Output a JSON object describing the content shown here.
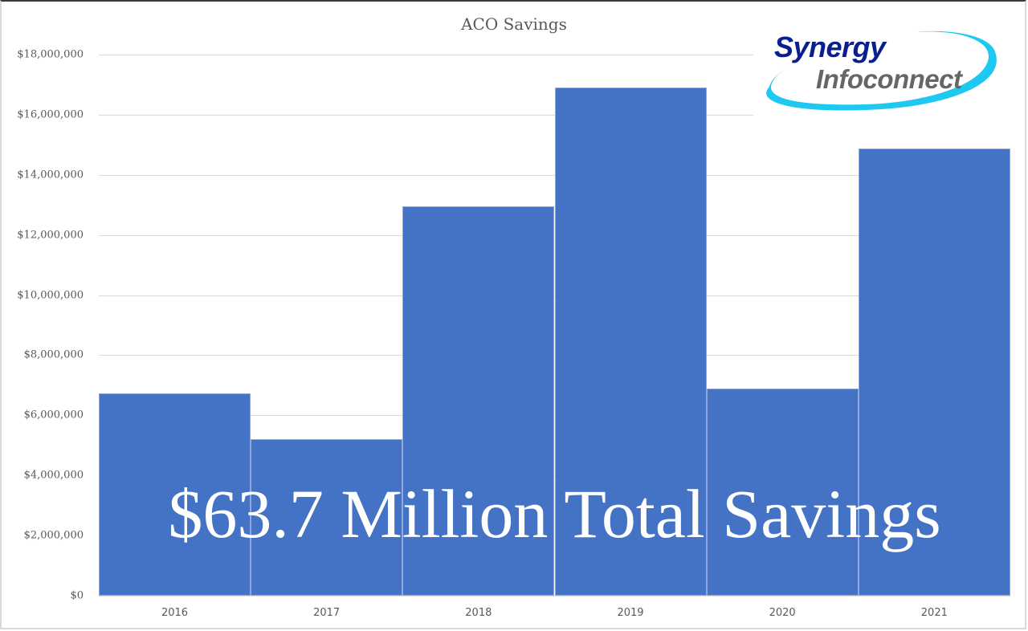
{
  "chart_data": {
    "type": "bar",
    "title": "ACO Savings",
    "xlabel": "",
    "ylabel": "",
    "categories": [
      "2016",
      "2017",
      "2018",
      "2019",
      "2020",
      "2021"
    ],
    "values": [
      6730000,
      5210000,
      12950000,
      16910000,
      6890000,
      14880000
    ],
    "ylim": [
      0,
      18000000
    ],
    "y_ticks": [
      "$0",
      "$2,000,000",
      "$4,000,000",
      "$6,000,000",
      "$8,000,000",
      "$10,000,000",
      "$12,000,000",
      "$14,000,000",
      "$16,000,000",
      "$18,000,000"
    ],
    "grid": true,
    "legend": "none",
    "bar_gap": 0,
    "bar_color": "#4472c4",
    "annotation": "$63.7 Million Total Savings"
  },
  "logo": {
    "line1": "Synergy",
    "line2": "Infoconnect",
    "colors": {
      "line1": "#0a1f8f",
      "line2": "#666666",
      "swoosh": "#1ec8f0"
    }
  }
}
